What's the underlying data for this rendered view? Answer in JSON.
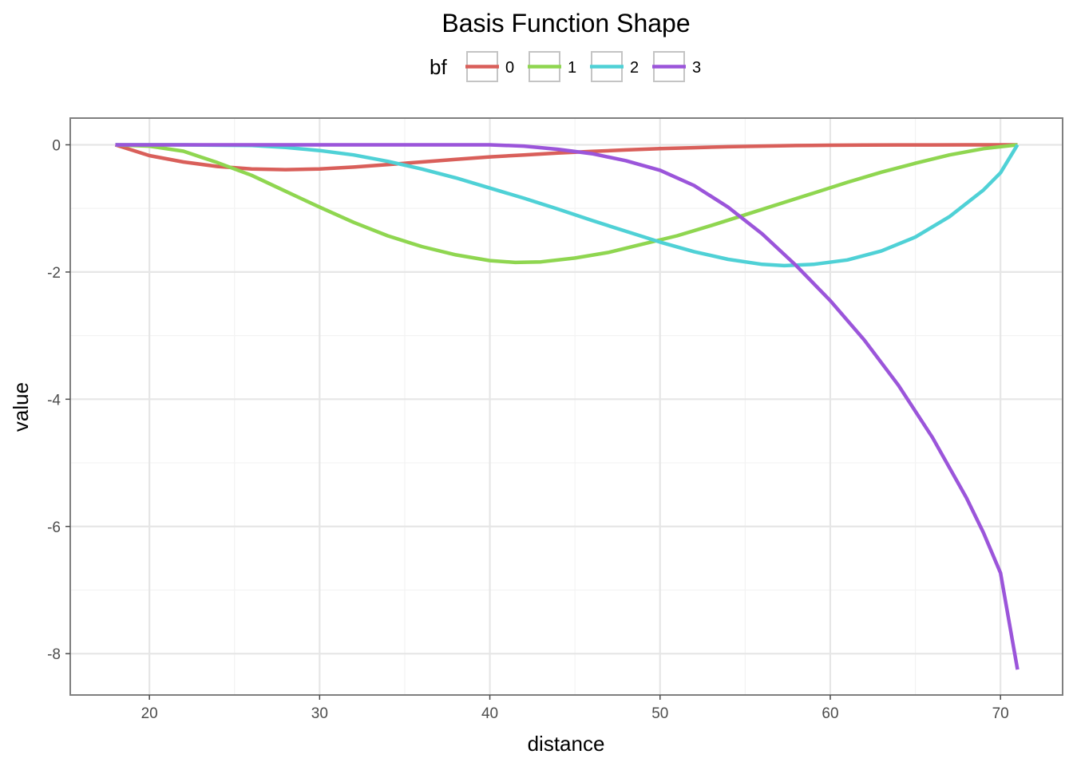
{
  "chart_data": {
    "type": "line",
    "title": "Basis Function Shape",
    "xlabel": "distance",
    "ylabel": "value",
    "legend": {
      "title": "bf",
      "placement": "top"
    },
    "xlim": [
      15.35,
      73.65
    ],
    "ylim": [
      -8.65,
      0.42
    ],
    "x_ticks": [
      20,
      30,
      40,
      50,
      60,
      70
    ],
    "y_ticks": [
      0,
      -2,
      -4,
      -6,
      -8
    ],
    "grid": true,
    "series": [
      {
        "name": "0",
        "color": "#d95f5a",
        "points": [
          [
            18,
            0
          ],
          [
            20,
            -0.17
          ],
          [
            22,
            -0.27
          ],
          [
            24,
            -0.34
          ],
          [
            26,
            -0.38
          ],
          [
            28,
            -0.39
          ],
          [
            30,
            -0.38
          ],
          [
            32,
            -0.35
          ],
          [
            34,
            -0.31
          ],
          [
            36,
            -0.27
          ],
          [
            38,
            -0.23
          ],
          [
            40,
            -0.19
          ],
          [
            42,
            -0.16
          ],
          [
            44,
            -0.13
          ],
          [
            46,
            -0.105
          ],
          [
            48,
            -0.08
          ],
          [
            50,
            -0.06
          ],
          [
            52,
            -0.045
          ],
          [
            54,
            -0.03
          ],
          [
            56,
            -0.02
          ],
          [
            58,
            -0.012
          ],
          [
            60,
            -0.007
          ],
          [
            62,
            -0.004
          ],
          [
            64,
            -0.002
          ],
          [
            66,
            -0.001
          ],
          [
            68,
            -0.0005
          ],
          [
            70,
            0
          ],
          [
            71,
            0
          ]
        ]
      },
      {
        "name": "1",
        "color": "#8fd650",
        "points": [
          [
            18,
            0
          ],
          [
            20,
            -0.02
          ],
          [
            22,
            -0.1
          ],
          [
            24,
            -0.28
          ],
          [
            26,
            -0.48
          ],
          [
            28,
            -0.73
          ],
          [
            30,
            -0.98
          ],
          [
            32,
            -1.22
          ],
          [
            34,
            -1.43
          ],
          [
            36,
            -1.6
          ],
          [
            38,
            -1.73
          ],
          [
            40,
            -1.82
          ],
          [
            41.5,
            -1.85
          ],
          [
            43,
            -1.84
          ],
          [
            45,
            -1.78
          ],
          [
            47,
            -1.69
          ],
          [
            49,
            -1.56
          ],
          [
            51,
            -1.43
          ],
          [
            53,
            -1.27
          ],
          [
            55,
            -1.1
          ],
          [
            57,
            -0.93
          ],
          [
            59,
            -0.76
          ],
          [
            61,
            -0.59
          ],
          [
            63,
            -0.43
          ],
          [
            65,
            -0.29
          ],
          [
            67,
            -0.16
          ],
          [
            69,
            -0.06
          ],
          [
            71,
            0
          ]
        ]
      },
      {
        "name": "2",
        "color": "#4fd1d6",
        "points": [
          [
            18,
            0
          ],
          [
            22,
            0
          ],
          [
            26,
            -0.01
          ],
          [
            28,
            -0.04
          ],
          [
            30,
            -0.09
          ],
          [
            32,
            -0.16
          ],
          [
            34,
            -0.26
          ],
          [
            36,
            -0.38
          ],
          [
            38,
            -0.52
          ],
          [
            40,
            -0.68
          ],
          [
            42,
            -0.84
          ],
          [
            44,
            -1.01
          ],
          [
            46,
            -1.19
          ],
          [
            48,
            -1.36
          ],
          [
            50,
            -1.53
          ],
          [
            52,
            -1.68
          ],
          [
            54,
            -1.8
          ],
          [
            56,
            -1.88
          ],
          [
            57.3,
            -1.9
          ],
          [
            59,
            -1.88
          ],
          [
            61,
            -1.81
          ],
          [
            63,
            -1.67
          ],
          [
            65,
            -1.45
          ],
          [
            67,
            -1.13
          ],
          [
            69,
            -0.71
          ],
          [
            70,
            -0.44
          ],
          [
            71,
            0
          ]
        ]
      },
      {
        "name": "3",
        "color": "#9b55da",
        "points": [
          [
            18,
            0
          ],
          [
            30,
            0
          ],
          [
            36,
            0
          ],
          [
            40,
            0
          ],
          [
            42,
            -0.02
          ],
          [
            44,
            -0.07
          ],
          [
            46,
            -0.14
          ],
          [
            48,
            -0.25
          ],
          [
            50,
            -0.4
          ],
          [
            52,
            -0.64
          ],
          [
            54,
            -0.98
          ],
          [
            56,
            -1.4
          ],
          [
            58,
            -1.9
          ],
          [
            60,
            -2.45
          ],
          [
            62,
            -3.07
          ],
          [
            64,
            -3.78
          ],
          [
            66,
            -4.6
          ],
          [
            68,
            -5.55
          ],
          [
            69,
            -6.1
          ],
          [
            70,
            -6.73
          ],
          [
            71,
            -8.25
          ]
        ]
      }
    ]
  }
}
